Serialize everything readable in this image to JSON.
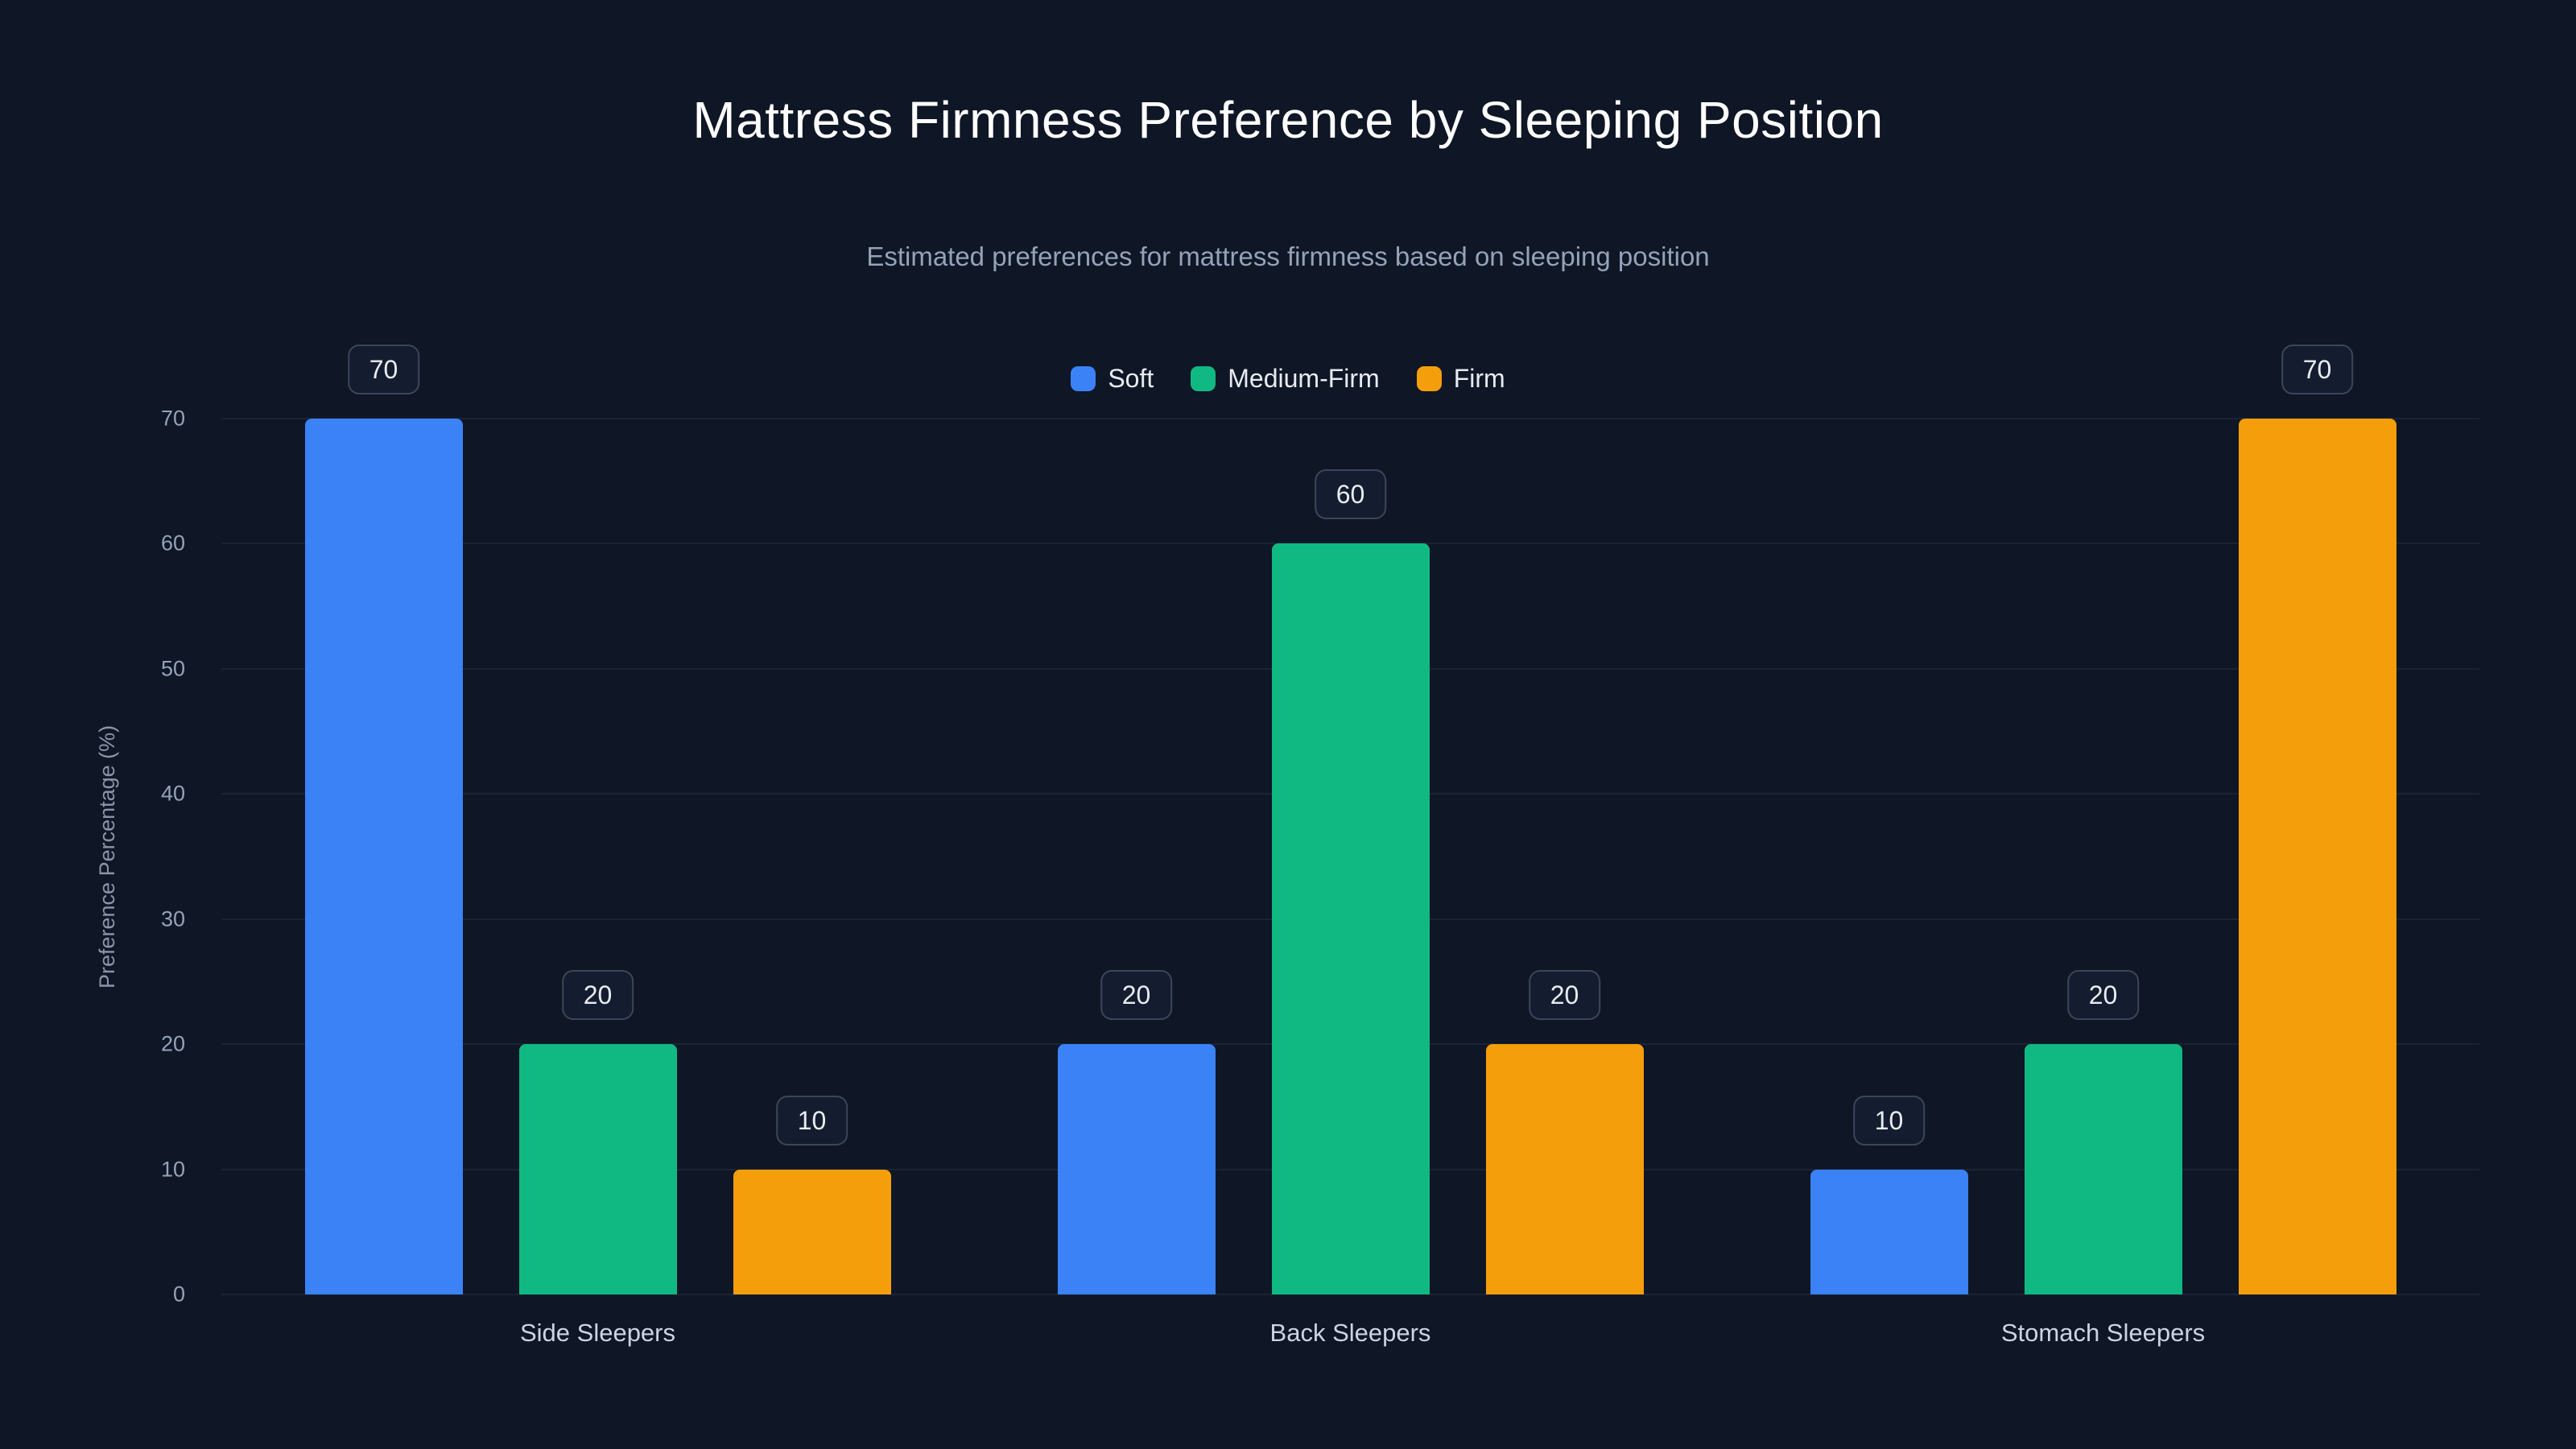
{
  "page": {
    "background": "#0f1626"
  },
  "chart_data": {
    "type": "bar",
    "title": "Mattress Firmness Preference by Sleeping Position",
    "subtitle": "Estimated preferences for mattress firmness based on sleeping position",
    "ylabel": "Preference Percentage (%)",
    "xlabel": "",
    "categories": [
      "Side Sleepers",
      "Back Sleepers",
      "Stomach Sleepers"
    ],
    "series": [
      {
        "name": "Soft",
        "color": "#3b82f6",
        "values": [
          70,
          20,
          10
        ]
      },
      {
        "name": "Medium-Firm",
        "color": "#10b981",
        "values": [
          20,
          60,
          20
        ]
      },
      {
        "name": "Firm",
        "color": "#f59e0b",
        "values": [
          10,
          20,
          70
        ]
      }
    ],
    "ylim": [
      0,
      70
    ],
    "yticks": [
      0,
      10,
      20,
      30,
      40,
      50,
      60,
      70
    ],
    "grid": true,
    "legend_position": "top-center",
    "value_labels": true
  }
}
